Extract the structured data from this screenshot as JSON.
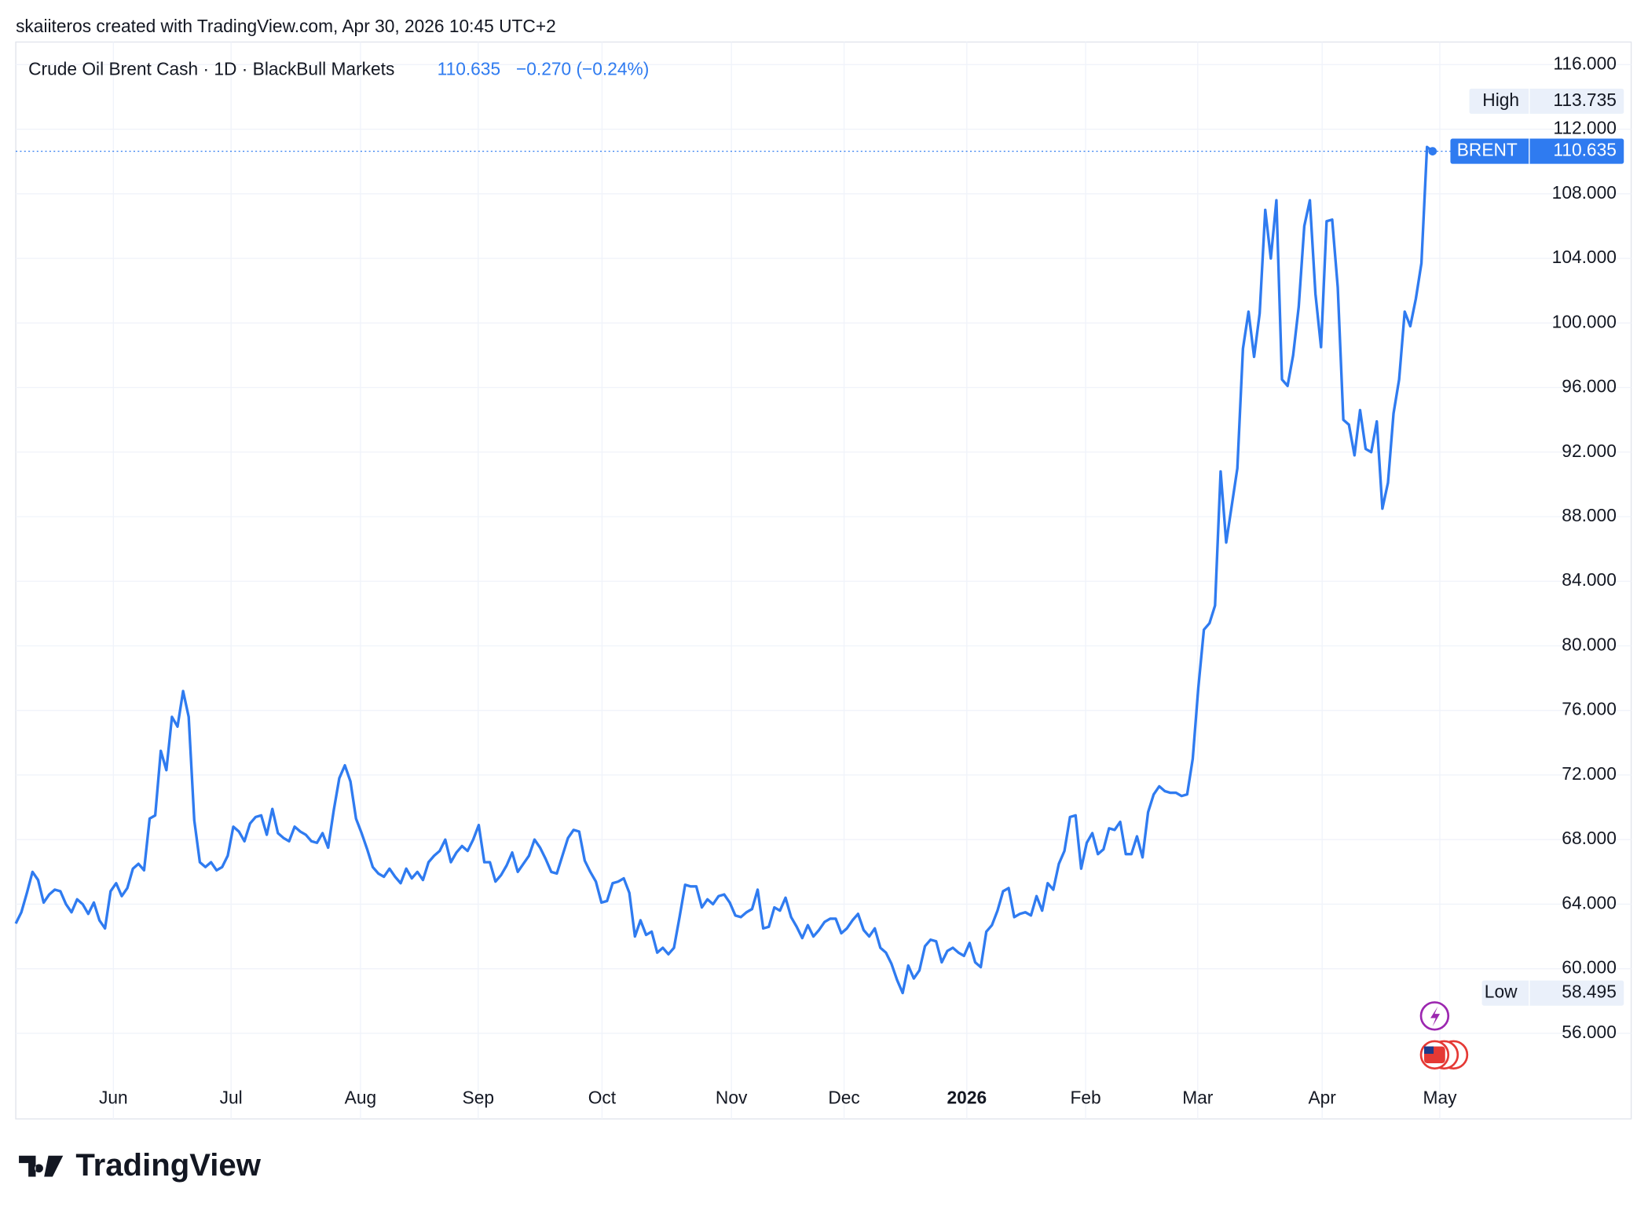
{
  "header": {
    "attribution": "skaiiteros created with TradingView.com, Apr 30, 2026 10:45 UTC+2"
  },
  "chart_data": {
    "type": "line",
    "title": "Crude Oil Brent Cash · 1D · BlackBull Markets",
    "change": "−0.270 (−0.24%)",
    "series": [
      {
        "name": "BRENT",
        "color": "#2f7bf0",
        "values": [
          62.8,
          63.5,
          64.7,
          66.0,
          65.5,
          64.1,
          64.6,
          64.9,
          64.8,
          64.0,
          63.5,
          64.3,
          64.0,
          63.4,
          64.1,
          63.0,
          62.5,
          64.8,
          65.3,
          64.5,
          65.0,
          66.2,
          66.5,
          66.1,
          69.3,
          69.5,
          73.5,
          72.3,
          75.6,
          75.0,
          77.2,
          75.6,
          69.2,
          66.6,
          66.3,
          66.6,
          66.1,
          66.3,
          67.0,
          68.8,
          68.5,
          67.9,
          69.0,
          69.4,
          69.5,
          68.3,
          69.9,
          68.4,
          68.1,
          67.9,
          68.8,
          68.5,
          68.3,
          67.9,
          67.8,
          68.4,
          67.5,
          69.8,
          71.8,
          72.6,
          71.6,
          69.3,
          68.4,
          67.4,
          66.3,
          65.9,
          65.7,
          66.2,
          65.7,
          65.3,
          66.2,
          65.6,
          66.0,
          65.5,
          66.6,
          67.0,
          67.3,
          68.0,
          66.6,
          67.2,
          67.6,
          67.3,
          68.0,
          68.9,
          66.6,
          66.6,
          65.4,
          65.8,
          66.4,
          67.2,
          66.0,
          66.5,
          67.0,
          68.0,
          67.5,
          66.8,
          66.0,
          65.9,
          67.0,
          68.1,
          68.6,
          68.5,
          66.7,
          66.0,
          65.4,
          64.1,
          64.2,
          65.3,
          65.4,
          65.6,
          64.7,
          62.0,
          63.0,
          62.1,
          62.3,
          61.0,
          61.3,
          60.9,
          61.3,
          63.2,
          65.2,
          65.1,
          65.1,
          63.8,
          64.3,
          64.0,
          64.5,
          64.6,
          64.1,
          63.3,
          63.2,
          63.5,
          63.7,
          64.9,
          62.5,
          62.6,
          63.8,
          63.6,
          64.4,
          63.2,
          62.6,
          61.9,
          62.7,
          62.0,
          62.4,
          62.9,
          63.1,
          63.1,
          62.2,
          62.5,
          63.0,
          63.4,
          62.4,
          62.0,
          62.5,
          61.3,
          61.0,
          60.3,
          59.3,
          58.5,
          60.2,
          59.4,
          59.9,
          61.4,
          61.8,
          61.7,
          60.4,
          61.1,
          61.3,
          61.0,
          60.8,
          61.6,
          60.4,
          60.1,
          62.3,
          62.7,
          63.6,
          64.8,
          65.0,
          63.2,
          63.4,
          63.5,
          63.3,
          64.5,
          63.6,
          65.3,
          64.9,
          66.5,
          67.3,
          69.4,
          69.5,
          66.2,
          67.8,
          68.4,
          67.1,
          67.4,
          68.7,
          68.6,
          69.1,
          67.1,
          67.1,
          68.2,
          66.9,
          69.7,
          70.8,
          71.3,
          71.0,
          70.9,
          70.9,
          70.7,
          70.8,
          73.0,
          77.4,
          81.0,
          81.4,
          82.5,
          90.8,
          86.4,
          88.7,
          91.0,
          98.4,
          100.7,
          97.9,
          100.6,
          107.0,
          104.0,
          107.6,
          96.5,
          96.1,
          98.0,
          101.0,
          106.0,
          107.6,
          101.8,
          98.5,
          106.3,
          106.4,
          102.2,
          94.0,
          93.7,
          91.8,
          94.6,
          92.2,
          92.0,
          93.9,
          88.5,
          90.1,
          94.4,
          96.5,
          100.7,
          99.8,
          101.5,
          103.7,
          110.9,
          110.635
        ]
      }
    ],
    "high": {
      "label": "High",
      "value": 113.735
    },
    "low": {
      "label": "Low",
      "value": 58.495
    },
    "xlim": [
      0,
      286.4
    ],
    "xticks": [
      {
        "value": 17.5,
        "label": "Jun"
      },
      {
        "value": 38.6,
        "label": "Jul"
      },
      {
        "value": 61.8,
        "label": "Aug"
      },
      {
        "value": 82.9,
        "label": "Sep"
      },
      {
        "value": 105.1,
        "label": "Oct"
      },
      {
        "value": 128.3,
        "label": "Nov"
      },
      {
        "value": 148.5,
        "label": "Dec"
      },
      {
        "value": 170.5,
        "label": "2026"
      },
      {
        "value": 191.8,
        "label": "Feb"
      },
      {
        "value": 211.9,
        "label": "Mar"
      },
      {
        "value": 234.2,
        "label": "Apr"
      },
      {
        "value": 255.3,
        "label": "May"
      }
    ],
    "ylim": [
      50.7,
      117.4
    ],
    "yticks": [
      {
        "value": 56,
        "label": "56.000"
      },
      {
        "value": 60,
        "label": "60.000"
      },
      {
        "value": 64,
        "label": "64.000"
      },
      {
        "value": 68,
        "label": "68.000"
      },
      {
        "value": 72,
        "label": "72.000"
      },
      {
        "value": 76,
        "label": "76.000"
      },
      {
        "value": 80,
        "label": "80.000"
      },
      {
        "value": 84,
        "label": "84.000"
      },
      {
        "value": 88,
        "label": "88.000"
      },
      {
        "value": 92,
        "label": "92.000"
      },
      {
        "value": 96,
        "label": "96.000"
      },
      {
        "value": 100,
        "label": "100.000"
      },
      {
        "value": 104,
        "label": "104.000"
      },
      {
        "value": 108,
        "label": "108.000"
      },
      {
        "value": 112,
        "label": "112.000"
      },
      {
        "value": 116,
        "label": "116.000"
      }
    ],
    "grid": true
  },
  "footer": {
    "logo": "TradingView"
  }
}
